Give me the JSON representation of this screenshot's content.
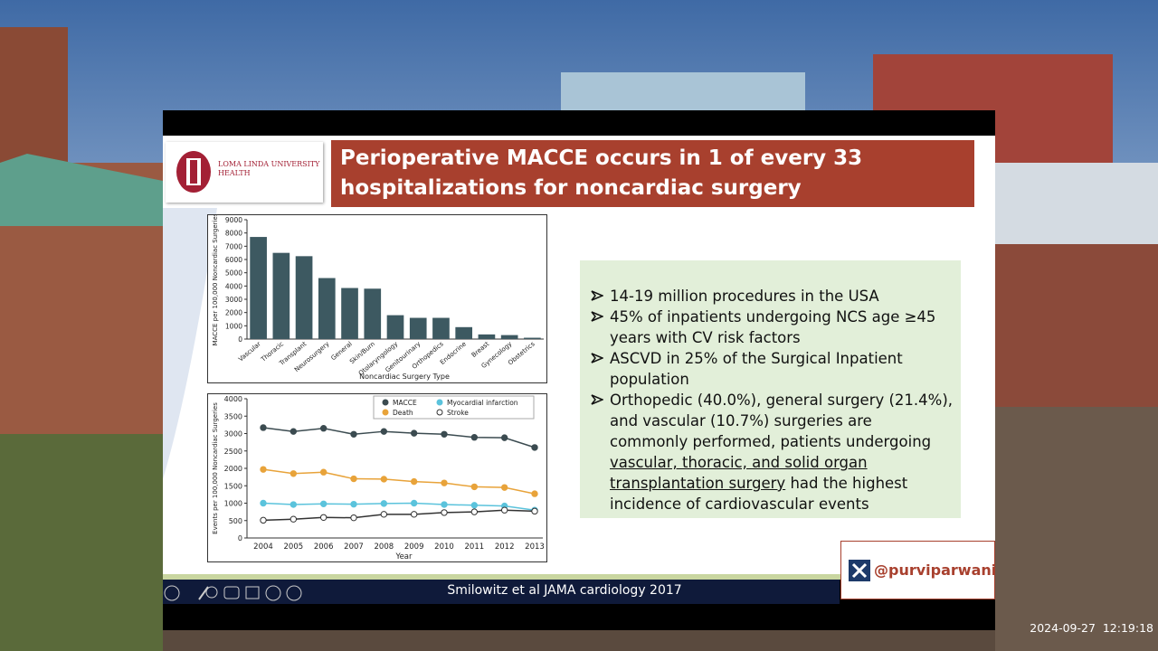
{
  "slide": {
    "logo": {
      "line1": "LOMA LINDA UNIVERSITY",
      "line2": "HEALTH"
    },
    "title": "Perioperative MACCE occurs in 1 of every 33 hospitalizations for noncardiac surgery",
    "bullets": [
      "14-19 million procedures in the USA",
      "45% of inpatients undergoing NCS age ≥45 years with CV risk factors",
      "ASCVD in 25% of the Surgical Inpatient population",
      {
        "before": "Orthopedic (40.0%), general surgery (21.4%), and vascular (10.7%) surgeries are commonly performed, patients undergoing ",
        "underlined": "vascular, thoracic, and solid organ transplantation surgery",
        "after": " had the highest incidence of cardiovascular events"
      }
    ],
    "citation": "Smilowitz et al JAMA cardiology 2017",
    "handle": "@purviparwani"
  },
  "timestamp": "2024-09-27  12:19:18",
  "chart_data": [
    {
      "type": "bar",
      "xlabel": "Noncardiac Surgery Type",
      "ylabel": "MACCE per 100,000 Noncardiac Surgeries",
      "categories": [
        "Vascular",
        "Thoracic",
        "Transplant",
        "Neurosurgery",
        "General",
        "Skin/Burn",
        "Otolaryngology",
        "Genitourinary",
        "Orthopedics",
        "Endocrine",
        "Breast",
        "Gynecology",
        "Obstetrics"
      ],
      "values": [
        7700,
        6500,
        6250,
        4600,
        3850,
        3800,
        1800,
        1600,
        1600,
        900,
        350,
        300,
        100
      ],
      "color": "#3d5961",
      "ylim": [
        0,
        9000
      ],
      "yticks": [
        0,
        1000,
        2000,
        3000,
        4000,
        5000,
        6000,
        7000,
        8000,
        9000
      ]
    },
    {
      "type": "line",
      "xlabel": "Year",
      "ylabel": "Events per 100,000 Noncardiac Surgeries",
      "categories": [
        "2004",
        "2005",
        "2006",
        "2007",
        "2008",
        "2009",
        "2010",
        "2011",
        "2012",
        "2013"
      ],
      "series": [
        {
          "name": "MACCE",
          "color": "#3b4b50",
          "values": [
            3170,
            3060,
            3150,
            2980,
            3060,
            3010,
            2980,
            2890,
            2880,
            2600
          ]
        },
        {
          "name": "Myocardial infarction",
          "color": "#5bc3dc",
          "values": [
            1000,
            960,
            980,
            970,
            990,
            1000,
            960,
            940,
            920,
            800
          ]
        },
        {
          "name": "Death",
          "color": "#e8a33a",
          "values": [
            1970,
            1850,
            1890,
            1700,
            1690,
            1620,
            1580,
            1470,
            1450,
            1270
          ]
        },
        {
          "name": "Stroke",
          "color": "#ffffff",
          "values": [
            510,
            540,
            590,
            580,
            680,
            680,
            730,
            750,
            800,
            770
          ]
        }
      ],
      "ylim": [
        0,
        4000
      ],
      "yticks": [
        0,
        500,
        1000,
        1500,
        2000,
        2500,
        3000,
        3500,
        4000
      ]
    }
  ]
}
